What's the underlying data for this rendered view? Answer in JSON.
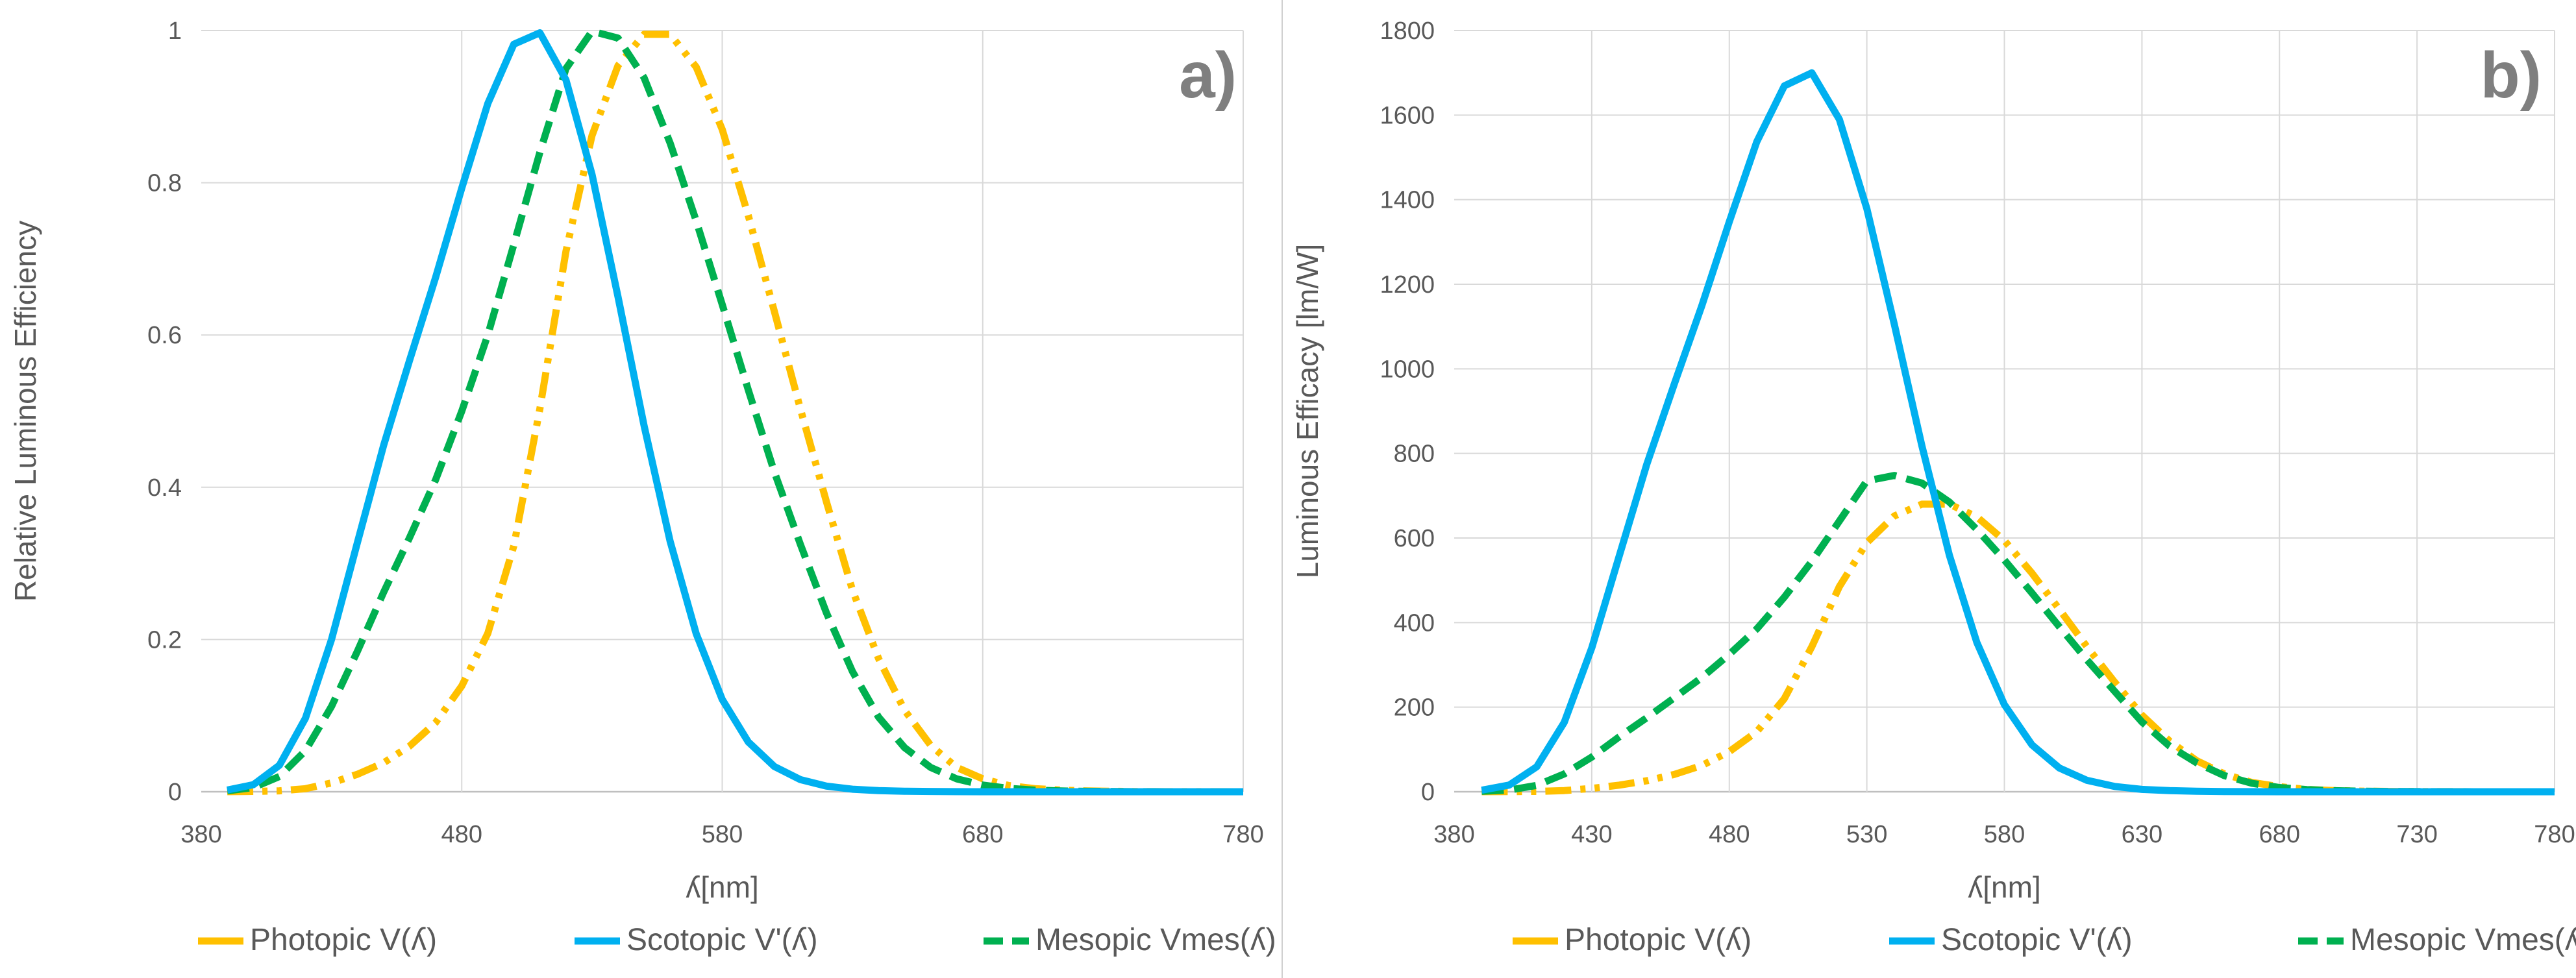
{
  "chart_data": [
    {
      "type": "line",
      "panel_label": "a)",
      "title": "",
      "xlabel": "ʎ[nm]",
      "ylabel": "Relative Luminous Efficiency",
      "xlim": [
        380,
        780
      ],
      "ylim": [
        0,
        1
      ],
      "xticks": [
        380,
        480,
        580,
        680,
        780
      ],
      "yticks": [
        0,
        0.2,
        0.4,
        0.6,
        0.8,
        1
      ],
      "x": [
        390,
        400,
        410,
        420,
        430,
        440,
        450,
        460,
        470,
        480,
        490,
        500,
        510,
        520,
        530,
        540,
        550,
        560,
        570,
        580,
        590,
        600,
        610,
        620,
        630,
        640,
        650,
        660,
        670,
        680,
        690,
        700,
        710,
        720,
        740,
        760,
        780
      ],
      "series": [
        {
          "name": "Photopic V(ʎ)",
          "color": "#FFC000",
          "dash": "longdashdotdot",
          "values": [
            0.0001,
            0.0004,
            0.0012,
            0.004,
            0.0116,
            0.023,
            0.038,
            0.06,
            0.091,
            0.139,
            0.208,
            0.323,
            0.503,
            0.71,
            0.862,
            0.954,
            0.995,
            0.995,
            0.952,
            0.87,
            0.757,
            0.631,
            0.503,
            0.381,
            0.265,
            0.175,
            0.107,
            0.061,
            0.032,
            0.017,
            0.0082,
            0.0041,
            0.0021,
            0.001,
            0.0002,
            0.0001,
            0.0
          ]
        },
        {
          "name": "Scotopic V'(ʎ)",
          "color": "#00B0F0",
          "dash": "solid",
          "values": [
            0.0022,
            0.0093,
            0.0348,
            0.0966,
            0.1998,
            0.3281,
            0.455,
            0.567,
            0.676,
            0.793,
            0.904,
            0.982,
            0.997,
            0.935,
            0.811,
            0.65,
            0.481,
            0.3288,
            0.2076,
            0.1212,
            0.0655,
            0.0332,
            0.0159,
            0.0074,
            0.0033,
            0.0015,
            0.0007,
            0.0003,
            0.0001,
            0.0,
            0.0,
            0.0,
            0.0,
            0.0,
            0.0,
            0.0,
            0.0
          ]
        },
        {
          "name": "Mesopic Vmes(ʎ)",
          "color": "#00B050",
          "dash": "dashed",
          "values": [
            0.0012,
            0.0055,
            0.02,
            0.054,
            0.112,
            0.185,
            0.262,
            0.334,
            0.41,
            0.5,
            0.6,
            0.719,
            0.84,
            0.95,
            0.999,
            0.99,
            0.938,
            0.852,
            0.75,
            0.64,
            0.528,
            0.42,
            0.325,
            0.235,
            0.158,
            0.098,
            0.058,
            0.032,
            0.017,
            0.0088,
            0.0044,
            0.0021,
            0.001,
            0.0005,
            0.0001,
            0.0,
            0.0
          ]
        }
      ]
    },
    {
      "type": "line",
      "panel_label": "b)",
      "title": "",
      "xlabel": "ʎ[nm]",
      "ylabel": "Luminous Efficacy [lm/W]",
      "xlim": [
        380,
        780
      ],
      "ylim": [
        0,
        1800
      ],
      "xticks": [
        380,
        430,
        480,
        530,
        580,
        630,
        680,
        730,
        780
      ],
      "yticks": [
        0,
        200,
        400,
        600,
        800,
        1000,
        1200,
        1400,
        1600,
        1800
      ],
      "x": [
        390,
        400,
        410,
        420,
        430,
        440,
        450,
        460,
        470,
        480,
        490,
        500,
        510,
        520,
        530,
        540,
        550,
        560,
        570,
        580,
        590,
        600,
        610,
        620,
        630,
        640,
        650,
        660,
        670,
        680,
        690,
        700,
        710,
        720,
        740,
        760,
        780
      ],
      "series": [
        {
          "name": "Photopic V(ʎ)",
          "color": "#FFC000",
          "dash": "longdashdotdot",
          "values": [
            0.1,
            0.3,
            0.8,
            2.7,
            7.9,
            15.7,
            26,
            41,
            62,
            95,
            142,
            220,
            343,
            485,
            589,
            652,
            680,
            680,
            650,
            594,
            517,
            431,
            343,
            260,
            181,
            120,
            73,
            42,
            22,
            12,
            5.6,
            2.8,
            1.4,
            0.7,
            0.1,
            0.0,
            0.0
          ]
        },
        {
          "name": "Scotopic V'(ʎ)",
          "color": "#00B0F0",
          "dash": "solid",
          "values": [
            3.7,
            15.8,
            59,
            164,
            340,
            558,
            774,
            964,
            1149,
            1348,
            1537,
            1669,
            1700,
            1590,
            1379,
            1105,
            818,
            559,
            353,
            206,
            111,
            56,
            27,
            12.6,
            5.6,
            2.6,
            1.2,
            0.5,
            0.2,
            0.0,
            0.0,
            0.0,
            0.0,
            0.0,
            0.0,
            0.0,
            0.0
          ]
        },
        {
          "name": "Mesopic Vmes(ʎ)",
          "color": "#00B050",
          "dash": "dashed",
          "values": [
            1.0,
            4.0,
            15,
            42,
            82,
            130,
            175,
            222,
            270,
            325,
            385,
            460,
            545,
            640,
            735,
            748,
            730,
            685,
            620,
            548,
            470,
            390,
            312,
            238,
            165,
            108,
            68,
            38,
            20,
            10,
            5,
            2.5,
            1.2,
            0.6,
            0.1,
            0.0,
            0.0
          ]
        }
      ]
    }
  ]
}
